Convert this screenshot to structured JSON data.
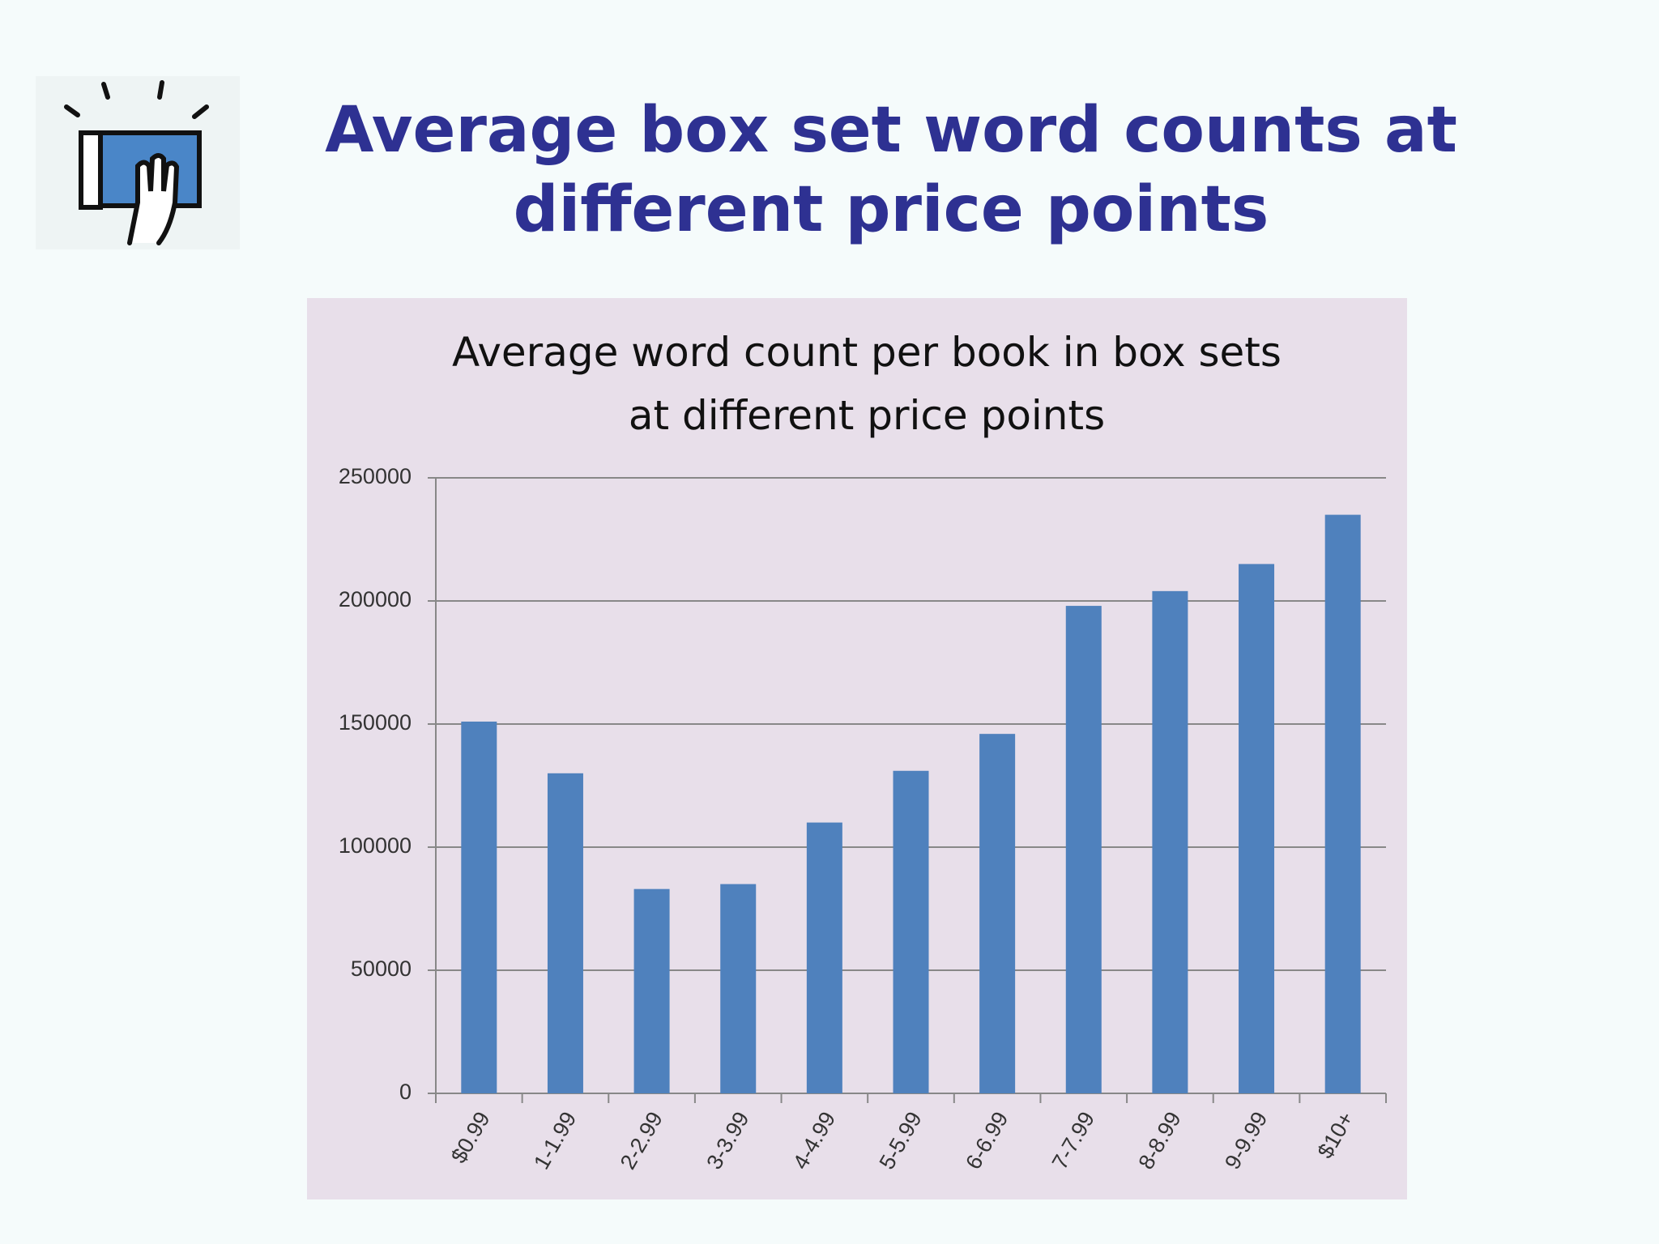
{
  "slide": {
    "title": "Average box set word counts at different price points"
  },
  "chart_data": {
    "type": "bar",
    "title": "Average word count per book in box sets at different price points",
    "categories": [
      "$0.99",
      "1-1.99",
      "2-2.99",
      "3-3.99",
      "4-4.99",
      "5-5.99",
      "6-6.99",
      "7-7.99",
      "8-8.99",
      "9-9.99",
      "$10+"
    ],
    "values": [
      151000,
      130000,
      83000,
      85000,
      110000,
      131000,
      146000,
      198000,
      204000,
      215000,
      235000
    ],
    "color": "#4f81bd",
    "ylim": [
      0,
      250000
    ],
    "yticks": [
      0,
      50000,
      100000,
      150000,
      200000,
      250000
    ],
    "grid": true
  }
}
